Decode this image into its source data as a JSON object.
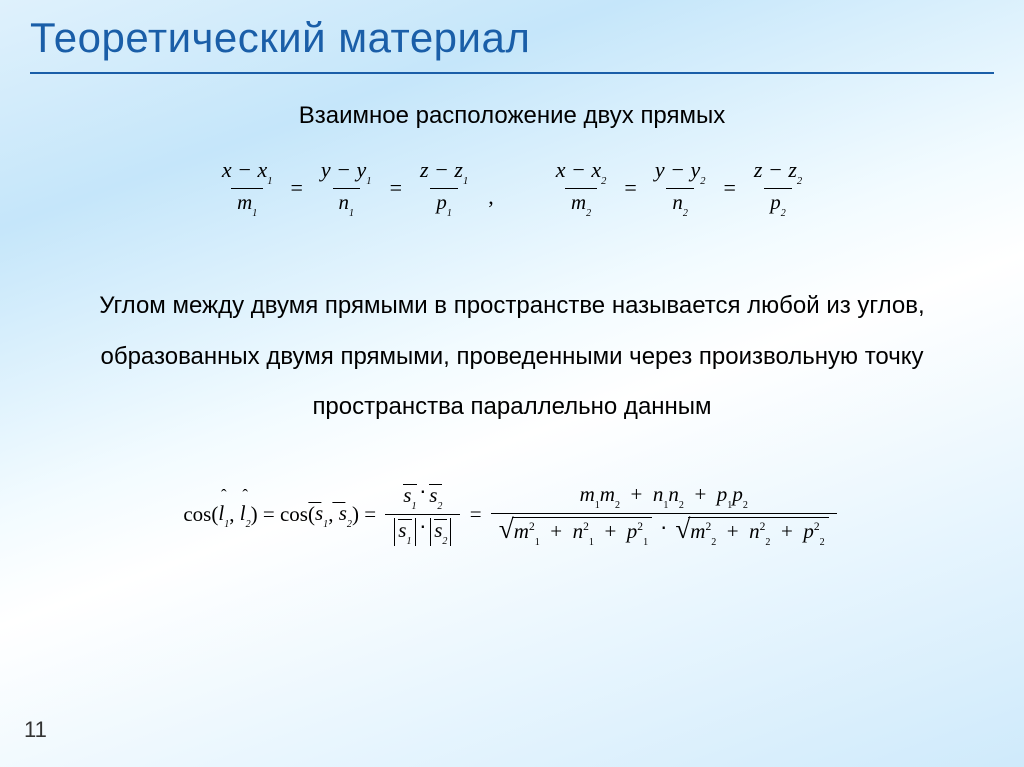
{
  "slide": {
    "title": "Теоретический материал",
    "title_color": "#1a5ea8",
    "title_fontsize": 42,
    "rule_color": "#1a5ea8",
    "subtitle": "Взаимное расположение двух прямых",
    "subtitle_fontsize": 24,
    "body": "Углом между двумя прямыми в пространстве называется любой из углов, образованных двумя прямыми, проведенными через произвольную точку пространства параллельно данным",
    "body_fontsize": 24,
    "page_number": "11",
    "background_gradient": [
      "#dff1fc",
      "#c5e6fa",
      "#f2fbff",
      "#ffffff",
      "#e9f6fe",
      "#cfeafb"
    ]
  },
  "line_equations": {
    "line1": {
      "terms": [
        {
          "num": "x − x",
          "num_sub": "1",
          "den": "m",
          "den_sub": "1"
        },
        {
          "num": "y − y",
          "num_sub": "1",
          "den": "n",
          "den_sub": "1"
        },
        {
          "num": "z − z",
          "num_sub": "1",
          "den": "p",
          "den_sub": "1"
        }
      ]
    },
    "line2": {
      "terms": [
        {
          "num": "x − x",
          "num_sub": "2",
          "den": "m",
          "den_sub": "2"
        },
        {
          "num": "y − y",
          "num_sub": "2",
          "den": "n",
          "den_sub": "2"
        },
        {
          "num": "z − z",
          "num_sub": "2",
          "den": "p",
          "den_sub": "2"
        }
      ]
    },
    "separator": ",",
    "relation": "="
  },
  "cos_formula": {
    "lhs_cos": "cos",
    "l1": "l",
    "l1_sub": "1",
    "l2": "l",
    "l2_sub": "2",
    "s1": "s",
    "s1_sub": "1",
    "s2": "s",
    "s2_sub": "2",
    "mid_frac": {
      "num": {
        "a": "s",
        "a_sub": "1",
        "b": "s",
        "b_sub": "2"
      },
      "den": {
        "a": "s",
        "a_sub": "1",
        "b": "s",
        "b_sub": "2"
      }
    },
    "rhs_frac": {
      "num_terms": [
        {
          "a": "m",
          "a_sub": "1",
          "b": "m",
          "b_sub": "2"
        },
        {
          "a": "n",
          "a_sub": "1",
          "b": "n",
          "b_sub": "2"
        },
        {
          "a": "p",
          "a_sub": "1",
          "b": "p",
          "b_sub": "2"
        }
      ],
      "den_sqrt1": [
        {
          "v": "m",
          "sub": "1"
        },
        {
          "v": "n",
          "sub": "1"
        },
        {
          "v": "p",
          "sub": "1"
        }
      ],
      "den_sqrt2": [
        {
          "v": "m",
          "sub": "2"
        },
        {
          "v": "n",
          "sub": "2"
        },
        {
          "v": "p",
          "sub": "2"
        }
      ],
      "exp": "2"
    },
    "plus": "+",
    "eq": "=",
    "dot": "⋅"
  }
}
